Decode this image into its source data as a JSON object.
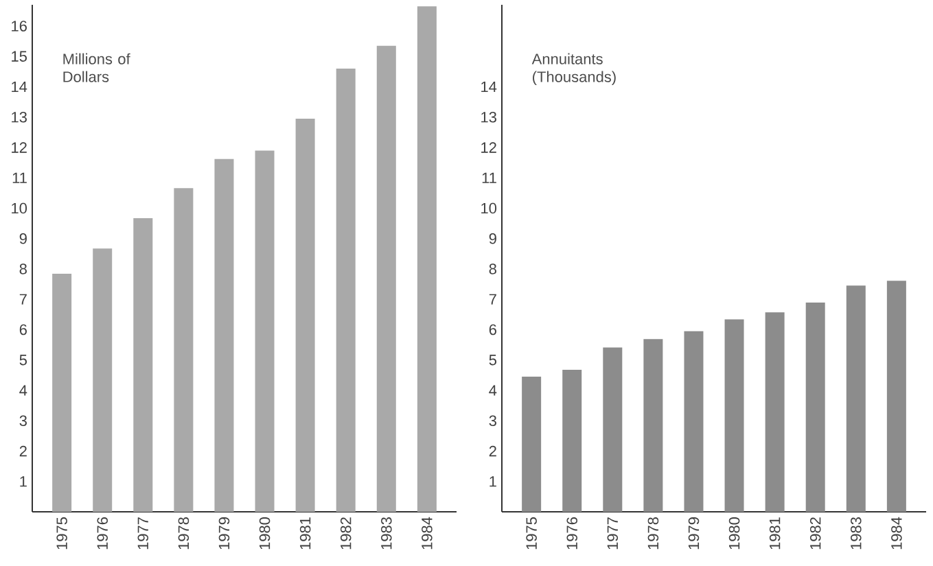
{
  "chart_data": [
    {
      "type": "bar",
      "ylabel": "Millions of Dollars",
      "categories": [
        "1975",
        "1976",
        "1977",
        "1978",
        "1979",
        "1980",
        "1981",
        "1982",
        "1983",
        "1984"
      ],
      "values": [
        7.84,
        8.67,
        9.67,
        10.66,
        11.62,
        11.9,
        12.95,
        14.6,
        15.35,
        16.65
      ],
      "color": "#a9a9a9",
      "ylim": [
        0,
        16.7
      ],
      "yticks": [
        1,
        2,
        3,
        4,
        5,
        6,
        7,
        8,
        9,
        10,
        11,
        12,
        13,
        14,
        15,
        16
      ]
    },
    {
      "type": "bar",
      "ylabel": "Annuitants (Thousands)",
      "categories": [
        "1975",
        "1976",
        "1977",
        "1978",
        "1979",
        "1980",
        "1981",
        "1982",
        "1983",
        "1984"
      ],
      "values": [
        4.45,
        4.68,
        5.41,
        5.69,
        5.95,
        6.34,
        6.57,
        6.89,
        7.45,
        7.61
      ],
      "color": "#8c8c8c",
      "ylim": [
        0,
        16.7
      ],
      "yticks": [
        1,
        2,
        3,
        4,
        5,
        6,
        7,
        8,
        9,
        10,
        11,
        12,
        13,
        14
      ]
    }
  ]
}
